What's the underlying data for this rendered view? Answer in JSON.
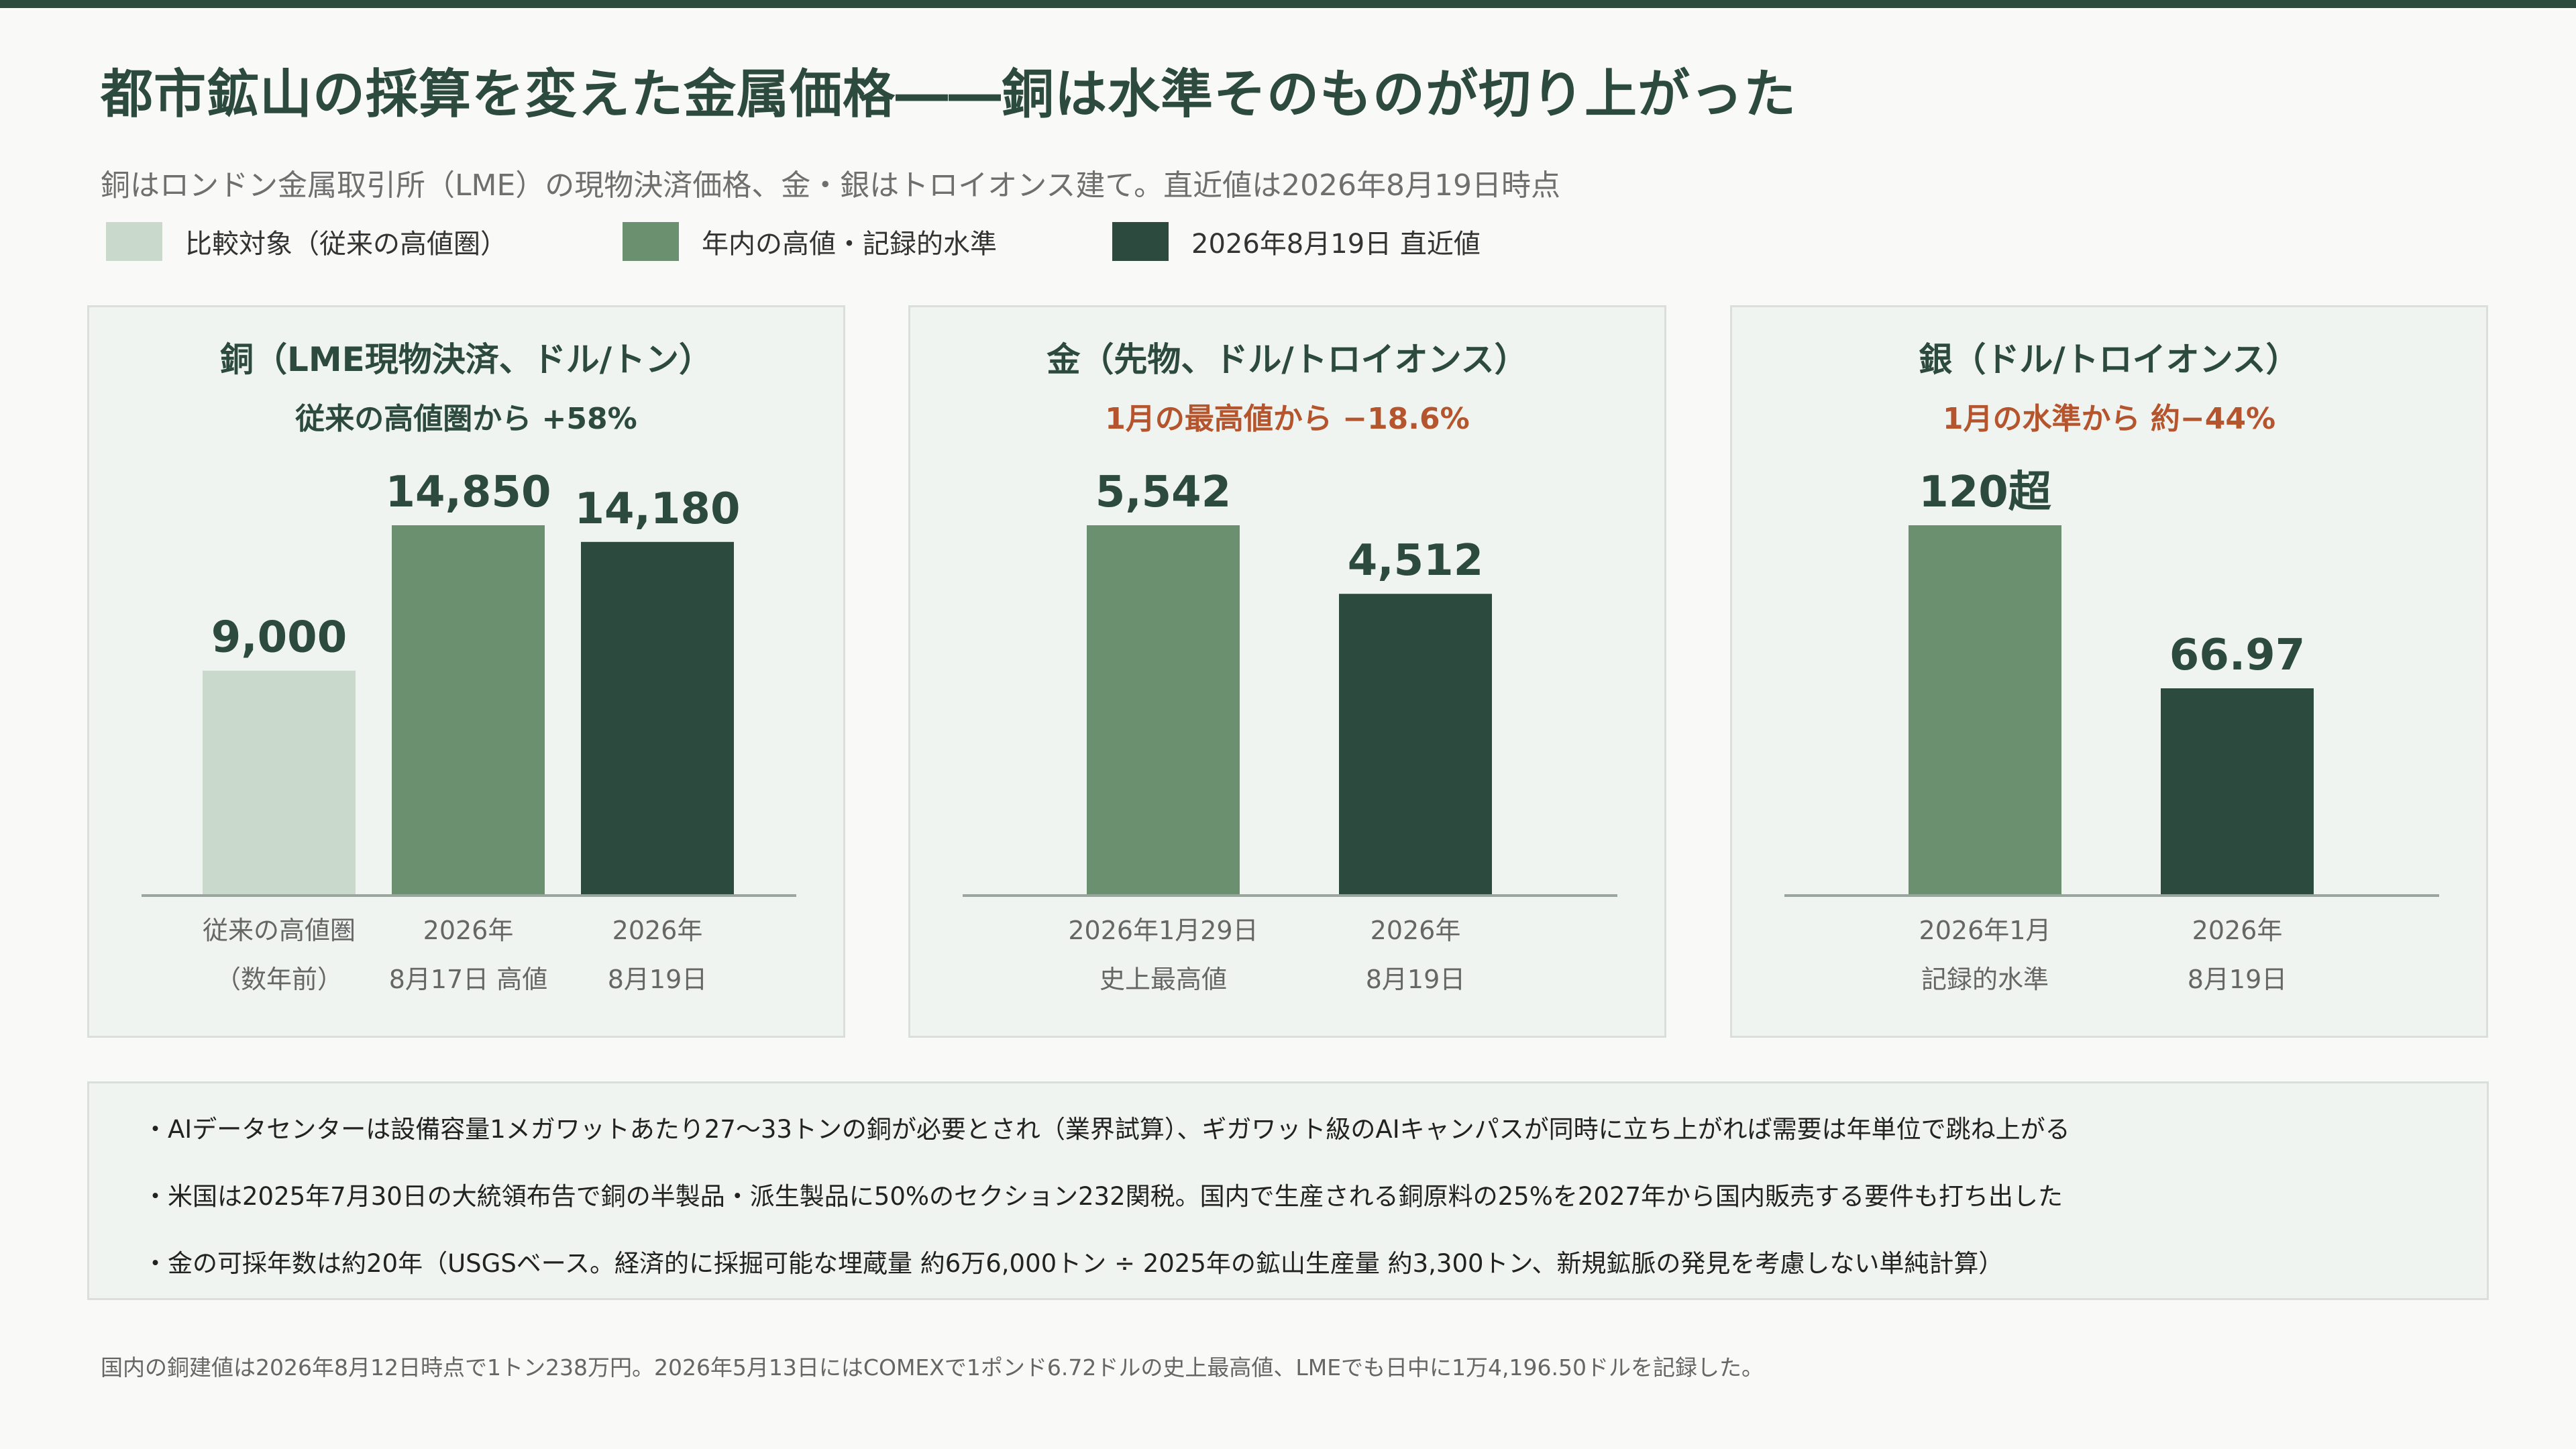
{
  "header": {
    "title": "都市鉱山の採算を変えた金属価格――銅は水準そのものが切り上がった",
    "subtitle": "銅はロンドン金属取引所（LME）の現物決済価格、金・銀はトロイオンス建て。直近値は2026年8月19日時点"
  },
  "legend": [
    {
      "label": "比較対象（従来の高値圏）",
      "color": "#c9dacd"
    },
    {
      "label": "年内の高値・記録的水準",
      "color": "#6b9070"
    },
    {
      "label": "2026年8月19日 直近値",
      "color": "#2d4a3e"
    }
  ],
  "colors": {
    "baseline": "#9aa59e",
    "label": "#666666",
    "value": "#2d4a3e",
    "note_up": "#2d4a3e",
    "note_down": "#b5552e"
  },
  "chart_data": [
    {
      "type": "bar",
      "title": "銅（LME現物決済、ドル/トン）",
      "note": "従来の高値圏から +58%",
      "note_color": "#2d4a3e",
      "ylim": [
        0,
        14850
      ],
      "categories": [
        [
          "従来の高値圏",
          "（数年前）"
        ],
        [
          "2026年",
          "8月17日 高値"
        ],
        [
          "2026年",
          "8月19日"
        ]
      ],
      "values": [
        9000,
        14850,
        14180
      ],
      "value_labels": [
        "9,000",
        "14,850",
        "14,180"
      ],
      "colors": [
        "#c9dacd",
        "#6b9070",
        "#2d4a3e"
      ]
    },
    {
      "type": "bar",
      "title": "金（先物、ドル/トロイオンス）",
      "note": "1月の最高値から −18.6%",
      "note_color": "#b5552e",
      "ylim": [
        0,
        5542
      ],
      "categories": [
        [
          "2026年1月29日",
          "史上最高値"
        ],
        [
          "2026年",
          "8月19日"
        ]
      ],
      "values": [
        5542,
        4512
      ],
      "value_labels": [
        "5,542",
        "4,512"
      ],
      "colors": [
        "#6b9070",
        "#2d4a3e"
      ]
    },
    {
      "type": "bar",
      "title": "銀（ドル/トロイオンス）",
      "note": "1月の水準から 約−44%",
      "note_color": "#b5552e",
      "ylim": [
        0,
        120
      ],
      "categories": [
        [
          "2026年1月",
          "記録的水準"
        ],
        [
          "2026年",
          "8月19日"
        ]
      ],
      "values": [
        120,
        66.97
      ],
      "value_labels": [
        "120超",
        "66.97"
      ],
      "colors": [
        "#6b9070",
        "#2d4a3e"
      ]
    }
  ],
  "notes": [
    "・AIデータセンターは設備容量1メガワットあたり27〜33トンの銅が必要とされ（業界試算）、ギガワット級のAIキャンパスが同時に立ち上がれば需要は年単位で跳ね上がる",
    "・米国は2025年7月30日の大統領布告で銅の半製品・派生製品に50%のセクション232関税。国内で生産される銅原料の25%を2027年から国内販売する要件も打ち出した",
    "・金の可採年数は約20年（USGSベース。経済的に採掘可能な埋蔵量 約6万6,000トン ÷ 2025年の鉱山生産量 約3,300トン、新規鉱脈の発見を考慮しない単純計算）"
  ],
  "footer": "国内の銅建値は2026年8月12日時点で1トン238万円。2026年5月13日にはCOMEXで1ポンド6.72ドルの史上最高値、LMEでも日中に1万4,196.50ドルを記録した。"
}
